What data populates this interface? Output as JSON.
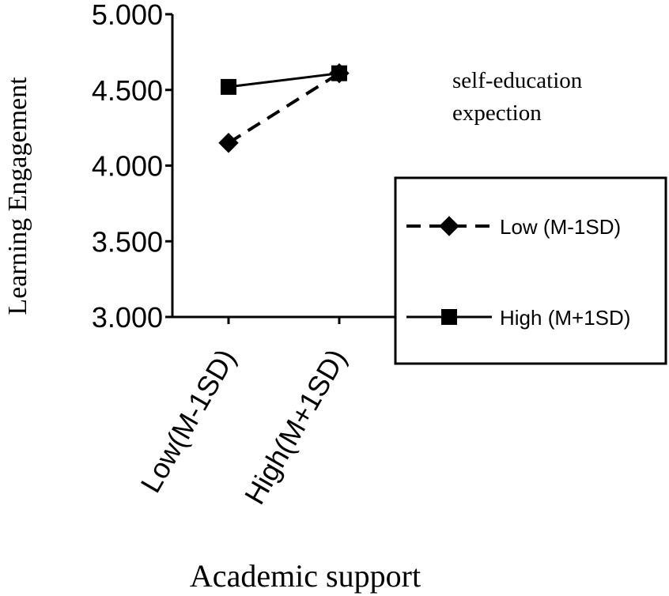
{
  "chart_data": {
    "type": "line",
    "title": "",
    "xlabel": "Academic support",
    "ylabel": "Learning Engagement",
    "categories": [
      "Low(M-1SD)",
      "High(M+1SD)"
    ],
    "yticks": [
      "3.000",
      "3.500",
      "4.000",
      "4.500",
      "5.000"
    ],
    "ylim": [
      3.0,
      5.0
    ],
    "grid": false,
    "moderator_label": [
      "self-education",
      "expection"
    ],
    "legend_position": "right",
    "series": [
      {
        "name": "Low (M-1SD)",
        "values": [
          4.15,
          4.61
        ],
        "line_style": "dashed",
        "marker": "diamond"
      },
      {
        "name": "High (M+1SD)",
        "values": [
          4.52,
          4.61
        ],
        "line_style": "solid",
        "marker": "square"
      }
    ],
    "colors": {
      "line": "#000000",
      "background": "#ffffff"
    }
  }
}
